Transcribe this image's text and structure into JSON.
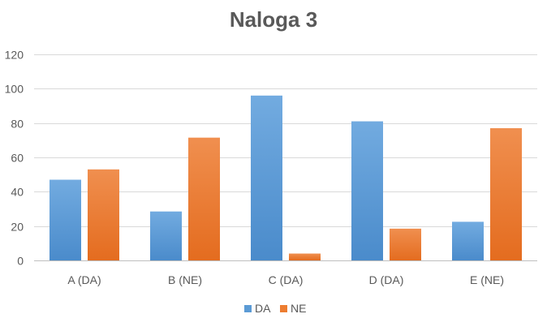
{
  "chart_data": {
    "type": "bar",
    "title": "Naloga 3",
    "categories": [
      "A (DA)",
      "B (NE)",
      "C (DA)",
      "D (DA)",
      "E (NE)"
    ],
    "series": [
      {
        "name": "DA",
        "values": [
          47,
          28.5,
          96,
          81,
          22.5
        ],
        "color": "#5B9BD5"
      },
      {
        "name": "NE",
        "values": [
          53,
          71.5,
          4,
          18.5,
          77
        ],
        "color": "#ED7D31"
      }
    ],
    "ylim": [
      0,
      120
    ],
    "yticks": [
      0,
      20,
      40,
      60,
      80,
      100,
      120
    ],
    "grid": true,
    "legend_position": "bottom"
  }
}
